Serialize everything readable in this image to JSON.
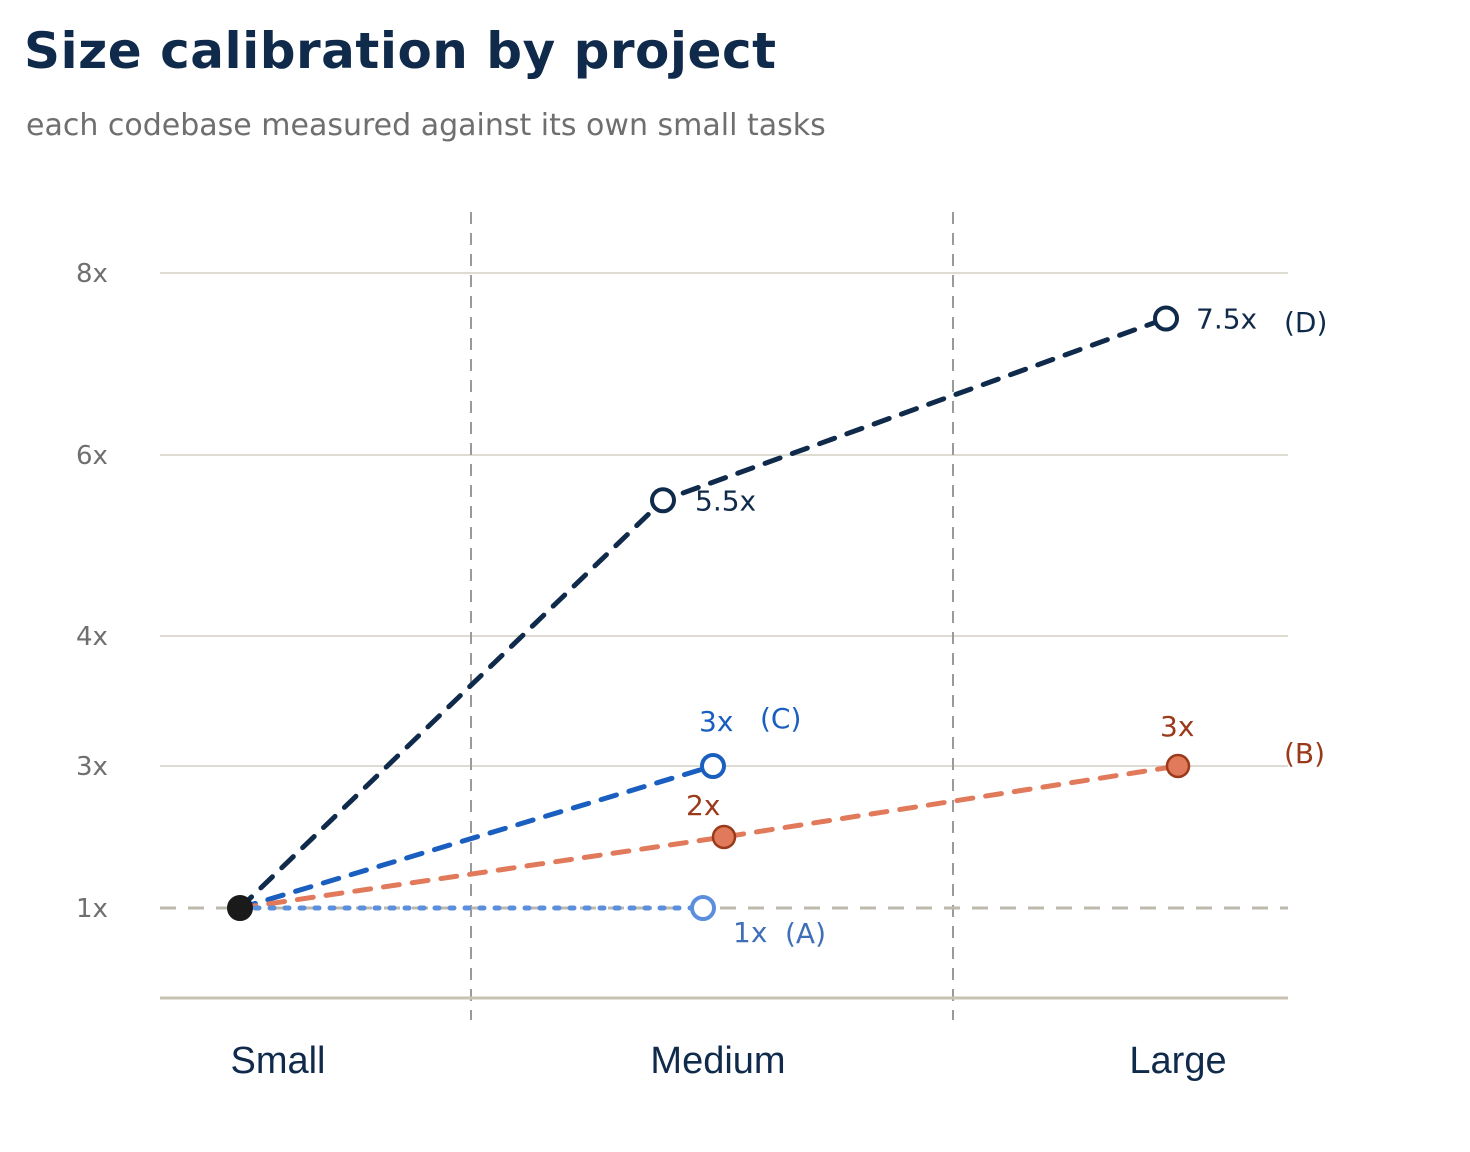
{
  "title": "Size calibration by project",
  "subtitle": "each codebase measured against its own small tasks",
  "chart_data": {
    "type": "line",
    "categories": [
      "Small",
      "Medium",
      "Large"
    ],
    "yticks": [
      "1x",
      "3x",
      "4x",
      "6x",
      "8x"
    ],
    "ylim": [
      0,
      8.5
    ],
    "grid": true,
    "baseline": {
      "value": 1,
      "style": "dashed"
    },
    "series": [
      {
        "name": "D",
        "color": "#0f2a4a",
        "style": "dashed",
        "points": [
          {
            "x": "Small",
            "y": 1
          },
          {
            "x": "Medium",
            "y": 5.5,
            "label": "5.5x"
          },
          {
            "x": "Large",
            "y": 7.5,
            "label": "7.5x"
          }
        ],
        "end_label": "(D)"
      },
      {
        "name": "C",
        "color": "#1a5fc0",
        "style": "dashed",
        "points": [
          {
            "x": "Small",
            "y": 1
          },
          {
            "x": "Medium",
            "y": 3,
            "label": "3x"
          }
        ],
        "end_label": "(C)"
      },
      {
        "name": "B",
        "color": "#e07a5a",
        "label_color": "#9b3a1a",
        "style": "dashed",
        "points": [
          {
            "x": "Small",
            "y": 1
          },
          {
            "x": "Medium",
            "y": 2,
            "label": "2x"
          },
          {
            "x": "Large",
            "y": 3,
            "label": "3x"
          }
        ],
        "end_label": "(B)"
      },
      {
        "name": "A",
        "color": "#5b8fde",
        "label_color": "#3f6fb8",
        "style": "dotted",
        "points": [
          {
            "x": "Small",
            "y": 1
          },
          {
            "x": "Medium",
            "y": 1,
            "label": "1x"
          }
        ],
        "end_label": "(A)"
      }
    ]
  }
}
